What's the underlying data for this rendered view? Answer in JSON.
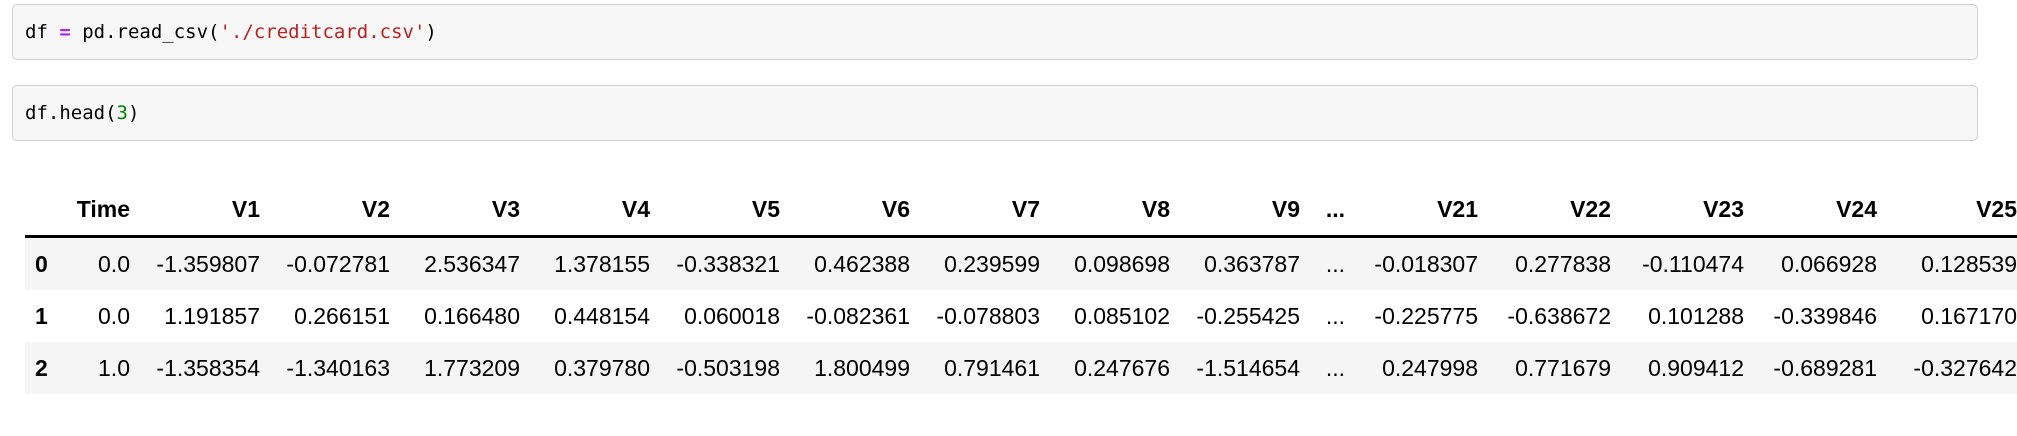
{
  "notebook": {
    "cells": [
      {
        "name": "code-cell-read-csv",
        "source": "df = pd.read_csv('./creditcard.csv')",
        "tokens": [
          {
            "text": "df ",
            "type": "plain"
          },
          {
            "text": "=",
            "type": "operator"
          },
          {
            "text": " pd.read_csv(",
            "type": "plain"
          },
          {
            "text": "'./creditcard.csv'",
            "type": "string"
          },
          {
            "text": ")",
            "type": "plain"
          }
        ]
      },
      {
        "name": "code-cell-head",
        "source": "df.head(3)",
        "tokens": [
          {
            "text": "df.head(",
            "type": "plain"
          },
          {
            "text": "3",
            "type": "number"
          },
          {
            "text": ")",
            "type": "plain"
          }
        ]
      }
    ]
  },
  "dataframe": {
    "columns": [
      "Time",
      "V1",
      "V2",
      "V3",
      "V4",
      "V5",
      "V6",
      "V7",
      "V8",
      "V9",
      "...",
      "V21",
      "V22",
      "V23",
      "V24",
      "V25"
    ],
    "index": [
      "0",
      "1",
      "2"
    ],
    "rows": [
      [
        "0.0",
        "-1.359807",
        "-0.072781",
        "2.536347",
        "1.378155",
        "-0.338321",
        "0.462388",
        "0.239599",
        "0.098698",
        "0.363787",
        "...",
        "-0.018307",
        "0.277838",
        "-0.110474",
        "0.066928",
        "0.128539"
      ],
      [
        "0.0",
        "1.191857",
        "0.266151",
        "0.166480",
        "0.448154",
        "0.060018",
        "-0.082361",
        "-0.078803",
        "0.085102",
        "-0.255425",
        "...",
        "-0.225775",
        "-0.638672",
        "0.101288",
        "-0.339846",
        "0.167170"
      ],
      [
        "1.0",
        "-1.358354",
        "-1.340163",
        "1.773209",
        "0.379780",
        "-0.503198",
        "1.800499",
        "0.791461",
        "0.247676",
        "-1.514654",
        "...",
        "0.247998",
        "0.771679",
        "0.909412",
        "-0.689281",
        "-0.327642"
      ]
    ]
  },
  "colors": {
    "operator": "#AA22FF",
    "string": "#BA2121",
    "number": "#008000",
    "cell_background": "#f7f7f7",
    "cell_border": "#cfcfcf",
    "row_stripe": "#f5f5f5",
    "header_rule": "#000000"
  }
}
